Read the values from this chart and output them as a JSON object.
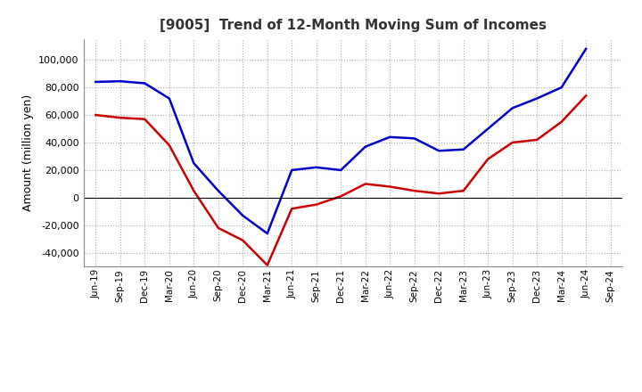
{
  "title": "[9005]  Trend of 12-Month Moving Sum of Incomes",
  "ylabel": "Amount (million yen)",
  "background_color": "#ffffff",
  "grid_color": "#aaaaaa",
  "x_labels": [
    "Jun-19",
    "Sep-19",
    "Dec-19",
    "Mar-20",
    "Jun-20",
    "Sep-20",
    "Dec-20",
    "Mar-21",
    "Jun-21",
    "Sep-21",
    "Dec-21",
    "Mar-22",
    "Jun-22",
    "Sep-22",
    "Dec-22",
    "Mar-23",
    "Jun-23",
    "Sep-23",
    "Dec-23",
    "Mar-24",
    "Jun-24",
    "Sep-24"
  ],
  "ordinary_income": [
    84000,
    84500,
    83000,
    72000,
    25000,
    5000,
    -13000,
    -26000,
    20000,
    22000,
    20000,
    37000,
    44000,
    43000,
    34000,
    35000,
    50000,
    65000,
    72000,
    80000,
    108000,
    null
  ],
  "net_income": [
    60000,
    58000,
    57000,
    38000,
    5000,
    -22000,
    -31000,
    -49000,
    -8000,
    -5000,
    1000,
    10000,
    8000,
    5000,
    3000,
    5000,
    28000,
    40000,
    42000,
    55000,
    74000,
    null
  ],
  "ordinary_color": "#0000cc",
  "net_color": "#cc0000",
  "ylim": [
    -50000,
    115000
  ],
  "yticks": [
    -40000,
    -20000,
    0,
    20000,
    40000,
    60000,
    80000,
    100000
  ],
  "line_width": 1.8
}
